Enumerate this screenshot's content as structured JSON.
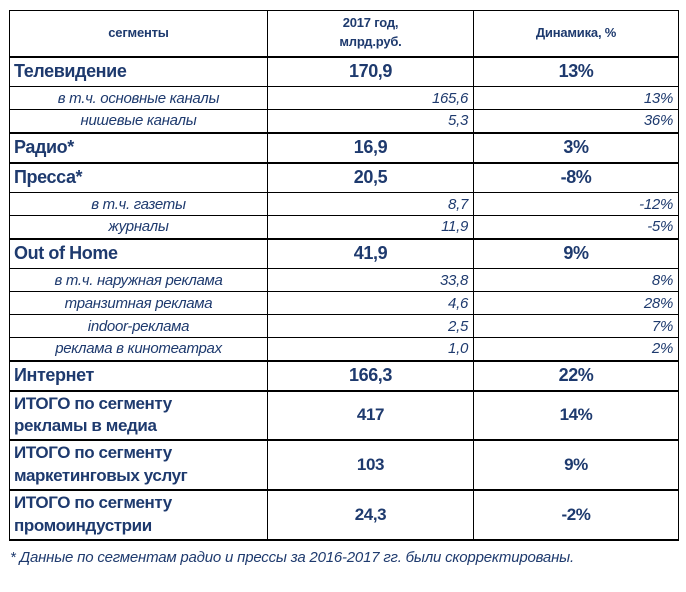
{
  "table": {
    "columns": [
      "сегменты",
      "2017 год,\nмлрд.руб.",
      "Динамика, %"
    ],
    "rows": [
      {
        "type": "main",
        "label": "Телевидение",
        "value": "170,9",
        "dynamics": "13%"
      },
      {
        "type": "sub",
        "label": "в т.ч. основные каналы",
        "value": "165,6",
        "dynamics": "13%"
      },
      {
        "type": "sub",
        "label": "нишевые каналы",
        "value": "5,3",
        "dynamics": "36%"
      },
      {
        "type": "main",
        "label": "Радио*",
        "value": "16,9",
        "dynamics": "3%"
      },
      {
        "type": "main",
        "label": "Пресса*",
        "value": "20,5",
        "dynamics": "-8%"
      },
      {
        "type": "sub",
        "label": "в т.ч. газеты",
        "value": "8,7",
        "dynamics": "-12%"
      },
      {
        "type": "sub",
        "label": "журналы",
        "value": "11,9",
        "dynamics": "-5%"
      },
      {
        "type": "main",
        "label": "Out of Home",
        "value": "41,9",
        "dynamics": "9%"
      },
      {
        "type": "sub",
        "label": "в т.ч. наружная реклама",
        "value": "33,8",
        "dynamics": "8%"
      },
      {
        "type": "sub",
        "label": "транзитная реклама",
        "value": "4,6",
        "dynamics": "28%"
      },
      {
        "type": "sub",
        "label": "indoor-реклама",
        "value": "2,5",
        "dynamics": "7%"
      },
      {
        "type": "sub",
        "label": "реклама в кинотеатрах",
        "value": "1,0",
        "dynamics": "2%"
      },
      {
        "type": "main",
        "label": "Интернет",
        "value": "166,3",
        "dynamics": "22%"
      },
      {
        "type": "total",
        "label": "ИТОГО по сегменту\nрекламы в медиа",
        "value": "417",
        "dynamics": "14%"
      },
      {
        "type": "total",
        "label": "ИТОГО по сегменту\nмаркетинговых услуг",
        "value": "103",
        "dynamics": "9%"
      },
      {
        "type": "total",
        "label": "ИТОГО по сегменту\nпромоиндустрии",
        "value": "24,3",
        "dynamics": "-2%"
      }
    ]
  },
  "footnote": "* Данные по сегментам радио и прессы за 2016-2017 гг. были скорректированы.",
  "colors": {
    "text": "#1e3a6e",
    "border": "#000000",
    "background": "#ffffff"
  }
}
